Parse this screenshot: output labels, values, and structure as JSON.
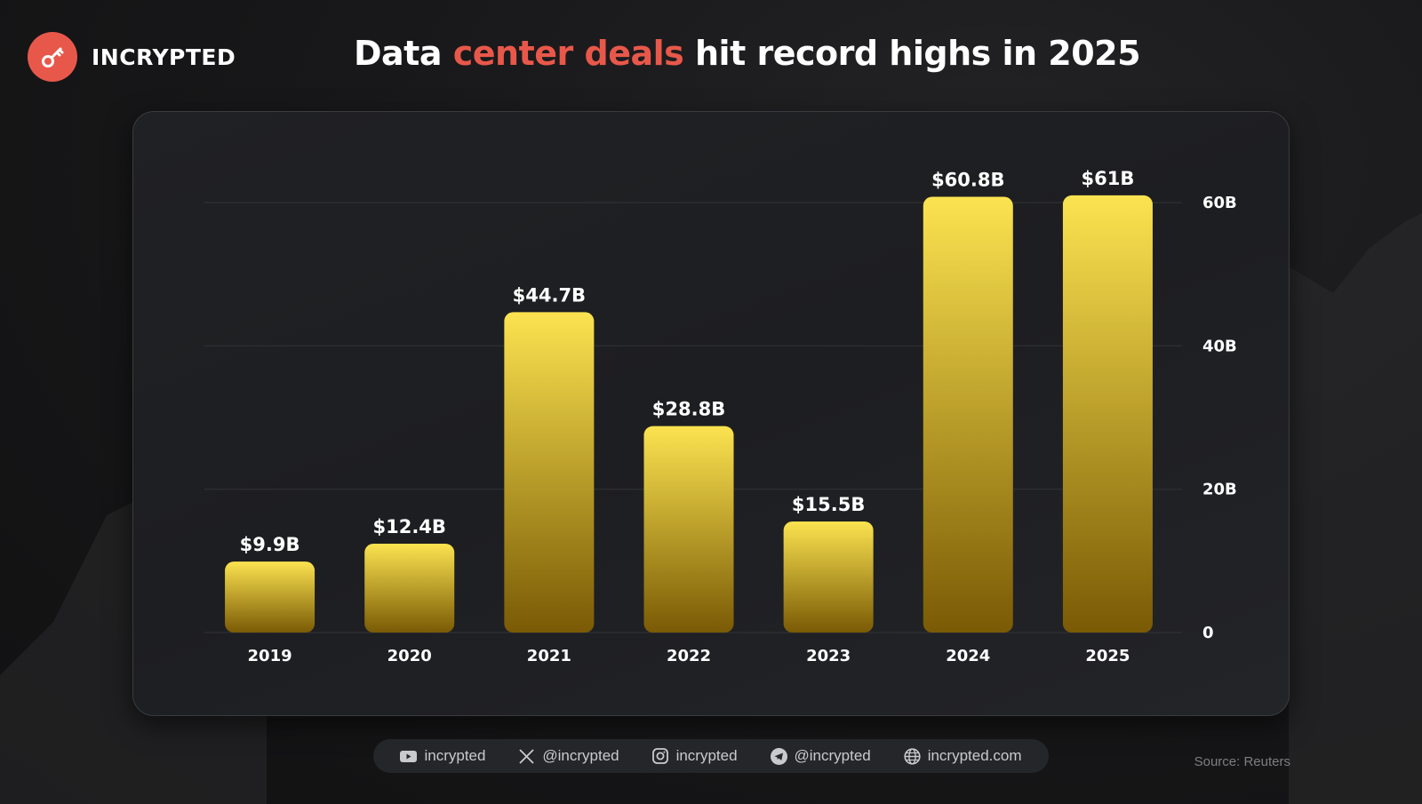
{
  "brand": {
    "name": "INCRYPTED",
    "logo_icon": "key-icon",
    "accent_color": "#e8584a"
  },
  "header": {
    "title_part1": "Data ",
    "title_accent": "center deals",
    "title_part2": " hit record highs in 2025"
  },
  "chart_data": {
    "type": "bar",
    "title": "Data center deals hit record highs in 2025",
    "xlabel": "",
    "ylabel": "",
    "categories": [
      "2019",
      "2020",
      "2021",
      "2022",
      "2023",
      "2024",
      "2025"
    ],
    "values": [
      9.9,
      12.4,
      44.7,
      28.8,
      15.5,
      60.8,
      61
    ],
    "value_labels": [
      "$9.9B",
      "$12.4B",
      "$44.7B",
      "$28.8B",
      "$15.5B",
      "$60.8B",
      "$61B"
    ],
    "unit": "billion USD",
    "ylim": [
      0,
      60
    ],
    "yticks": [
      0,
      20,
      40,
      60
    ],
    "ytick_labels": [
      "0",
      "20B",
      "40B",
      "60B"
    ],
    "y_axis_position": "right",
    "grid": true,
    "bar_gradient": [
      "#fbe350",
      "#7a5a05"
    ]
  },
  "footer": {
    "socials": [
      {
        "icon": "youtube-icon",
        "label": "incrypted"
      },
      {
        "icon": "x-icon",
        "label": "@incrypted"
      },
      {
        "icon": "instagram-icon",
        "label": "incrypted"
      },
      {
        "icon": "telegram-icon",
        "label": "@incrypted"
      },
      {
        "icon": "globe-icon",
        "label": "incrypted.com"
      }
    ],
    "source": "Source: Reuters"
  }
}
